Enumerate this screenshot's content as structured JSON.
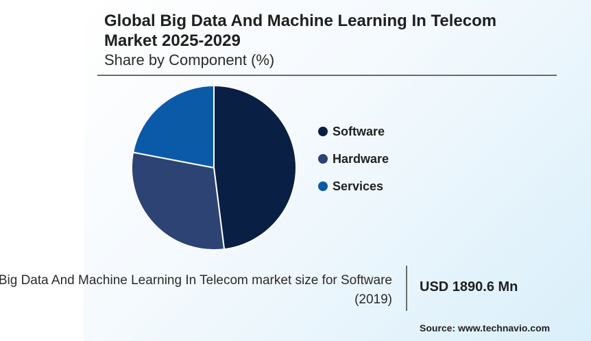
{
  "header": {
    "title": "Global Big Data And Machine Learning In Telecom Market 2025-2029",
    "subtitle": "Share by Component (%)"
  },
  "chart_data": {
    "type": "pie",
    "categories": [
      "Software",
      "Hardware",
      "Services"
    ],
    "values": [
      48,
      30,
      22
    ],
    "colors": [
      "#0a1f44",
      "#2d4373",
      "#0b5aa8"
    ],
    "legend_position": "right"
  },
  "footer": {
    "caption": "Big Data And Machine Learning In Telecom market size for Software (2019)",
    "value": "USD 1890.6 Mn",
    "source": "Source: www.technavio.com"
  }
}
